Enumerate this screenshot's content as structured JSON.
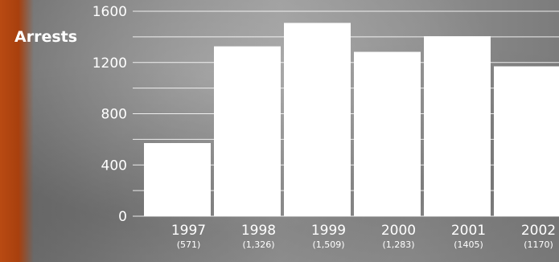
{
  "chart_data": {
    "type": "bar",
    "ylabel": "Arrests",
    "categories": [
      "1997",
      "1998",
      "1999",
      "2000",
      "2001",
      "2002"
    ],
    "category_sublabels": [
      "(571)",
      "(1,326)",
      "(1,509)",
      "(1,283)",
      "(1405)",
      "(1170)"
    ],
    "values": [
      571,
      1326,
      1509,
      1283,
      1405,
      1170
    ],
    "ylim": [
      0,
      1600
    ],
    "yticks": [
      0,
      400,
      800,
      1200,
      1600
    ],
    "grid": true,
    "bar_color": "#ffffff"
  }
}
